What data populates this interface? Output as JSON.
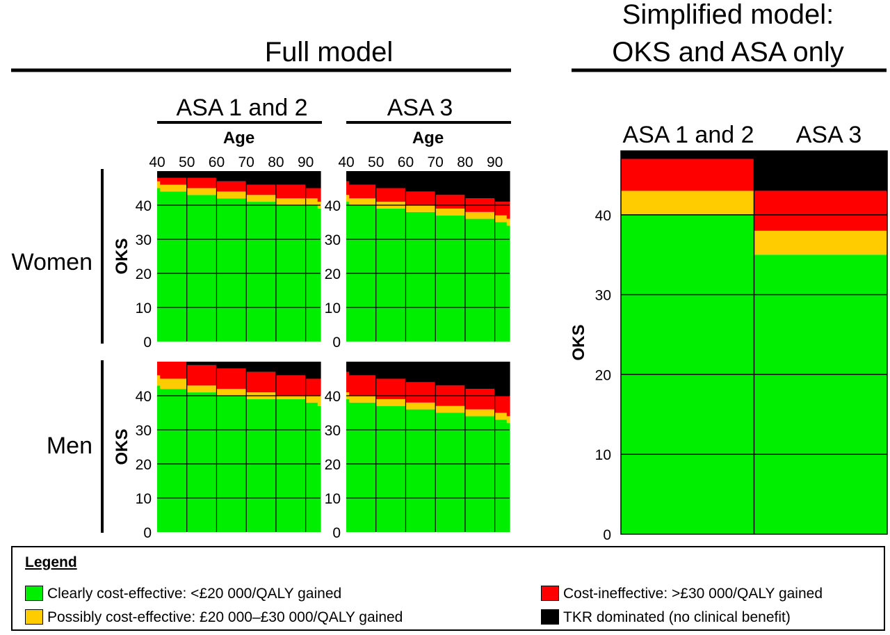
{
  "colors": {
    "clear": "#00ee00",
    "possible": "#ffcc00",
    "ineffective": "#ff0000",
    "dominated": "#000000"
  },
  "headings": {
    "full_model": "Full model",
    "simplified_line1": "Simplified model:",
    "simplified_line2": "OKS and ASA only",
    "asa12": "ASA 1 and 2",
    "asa3": "ASA 3",
    "age": "Age",
    "oks": "OKS",
    "women": "Women",
    "men": "Men"
  },
  "legend": {
    "title": "Legend",
    "items": [
      {
        "key": "clear",
        "label": "Clearly cost-effective: <£20 000/QALY gained"
      },
      {
        "key": "possible",
        "label": "Possibly cost-effective: £20 000–£30 000/QALY gained"
      },
      {
        "key": "ineffective",
        "label": "Cost-ineffective: >£30 000/QALY gained"
      },
      {
        "key": "dominated",
        "label": "TKR dominated (no clinical benefit)"
      }
    ]
  },
  "chart_data": [
    {
      "type": "heatmap",
      "panel": "full-women-asa12",
      "sex": "Women",
      "asa": "ASA 1 and 2",
      "xlabel": "Age",
      "ylabel": "OKS",
      "x_ticks": [
        40,
        50,
        60,
        70,
        80,
        90
      ],
      "y_ticks": [
        0,
        10,
        20,
        30,
        40
      ],
      "xlim": [
        40,
        95
      ],
      "ylim": [
        0,
        50
      ],
      "age_bands": [
        [
          40,
          41
        ],
        [
          41,
          50
        ],
        [
          50,
          60
        ],
        [
          60,
          70
        ],
        [
          70,
          80
        ],
        [
          80,
          90
        ],
        [
          90,
          94
        ],
        [
          94,
          95
        ]
      ],
      "thresholds": {
        "clear_max": [
          45,
          44,
          43,
          42,
          41,
          40,
          40,
          39
        ],
        "possible_max": [
          47,
          46,
          45,
          44,
          43,
          42,
          42,
          41
        ],
        "ineffective_max": [
          48,
          48,
          48,
          47,
          46,
          46,
          45,
          45
        ]
      }
    },
    {
      "type": "heatmap",
      "panel": "full-women-asa3",
      "sex": "Women",
      "asa": "ASA 3",
      "xlabel": "Age",
      "ylabel": "OKS",
      "x_ticks": [
        40,
        50,
        60,
        70,
        80,
        90
      ],
      "y_ticks": [
        0,
        10,
        20,
        30,
        40
      ],
      "xlim": [
        40,
        95
      ],
      "ylim": [
        0,
        50
      ],
      "age_bands": [
        [
          40,
          41
        ],
        [
          41,
          50
        ],
        [
          50,
          60
        ],
        [
          60,
          70
        ],
        [
          70,
          80
        ],
        [
          80,
          90
        ],
        [
          90,
          94
        ],
        [
          94,
          95
        ]
      ],
      "thresholds": {
        "clear_max": [
          41,
          40,
          39,
          38,
          37,
          36,
          35,
          34
        ],
        "possible_max": [
          43,
          42,
          41,
          40,
          39,
          38,
          37,
          36
        ],
        "ineffective_max": [
          47,
          46,
          45,
          44,
          43,
          42,
          41,
          41
        ]
      }
    },
    {
      "type": "heatmap",
      "panel": "full-men-asa12",
      "sex": "Men",
      "asa": "ASA 1 and 2",
      "xlabel": "Age",
      "ylabel": "OKS",
      "x_ticks": [
        40,
        50,
        60,
        70,
        80,
        90
      ],
      "y_ticks": [
        0,
        10,
        20,
        30,
        40
      ],
      "xlim": [
        40,
        95
      ],
      "ylim": [
        0,
        50
      ],
      "age_bands": [
        [
          40,
          41
        ],
        [
          41,
          50
        ],
        [
          50,
          60
        ],
        [
          60,
          70
        ],
        [
          70,
          80
        ],
        [
          80,
          90
        ],
        [
          90,
          94
        ],
        [
          94,
          95
        ]
      ],
      "thresholds": {
        "clear_max": [
          43,
          42,
          41,
          40,
          39,
          39,
          38,
          37
        ],
        "possible_max": [
          46,
          45,
          43,
          42,
          41,
          40,
          40,
          40
        ],
        "ineffective_max": [
          50,
          50,
          49,
          48,
          47,
          46,
          45,
          45
        ]
      }
    },
    {
      "type": "heatmap",
      "panel": "full-men-asa3",
      "sex": "Men",
      "asa": "ASA 3",
      "xlabel": "Age",
      "ylabel": "OKS",
      "x_ticks": [
        40,
        50,
        60,
        70,
        80,
        90
      ],
      "y_ticks": [
        0,
        10,
        20,
        30,
        40
      ],
      "xlim": [
        40,
        95
      ],
      "ylim": [
        0,
        50
      ],
      "age_bands": [
        [
          40,
          41
        ],
        [
          41,
          50
        ],
        [
          50,
          60
        ],
        [
          60,
          70
        ],
        [
          70,
          80
        ],
        [
          80,
          90
        ],
        [
          90,
          94
        ],
        [
          94,
          95
        ]
      ],
      "thresholds": {
        "clear_max": [
          39,
          38,
          37,
          36,
          35,
          34,
          33,
          32
        ],
        "possible_max": [
          41,
          40,
          39,
          38,
          37,
          36,
          35,
          34
        ],
        "ineffective_max": [
          47,
          46,
          45,
          44,
          43,
          42,
          40,
          40
        ]
      }
    },
    {
      "type": "heatmap",
      "panel": "simplified",
      "title": "Simplified model: OKS and ASA only",
      "ylabel": "OKS",
      "y_ticks": [
        0,
        10,
        20,
        30,
        40
      ],
      "ylim": [
        0,
        48
      ],
      "columns": [
        "ASA 1 and 2",
        "ASA 3"
      ],
      "thresholds": {
        "clear_max": [
          40,
          35
        ],
        "possible_max": [
          43,
          38
        ],
        "ineffective_max": [
          47,
          43
        ]
      }
    }
  ]
}
